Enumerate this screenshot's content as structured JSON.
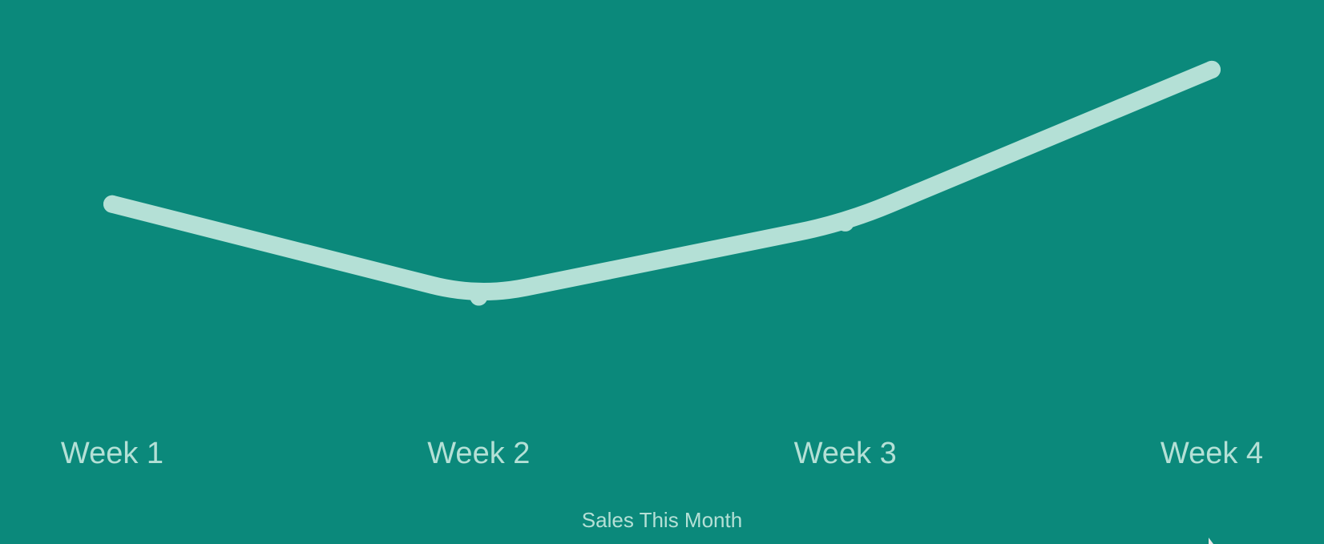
{
  "chart_data": {
    "type": "line",
    "categories": [
      "Week 1",
      "Week 2",
      "Week 3",
      "Week 4"
    ],
    "series": [
      {
        "values": [
          5.6,
          3.6,
          5.2,
          8.5
        ]
      }
    ],
    "xlabel": "Sales This Month",
    "ylabel": "",
    "ylim": [
      0,
      10
    ],
    "grid": false,
    "legend": "none",
    "colors": {
      "background": "#0b897b",
      "line": "#b4e0d6",
      "text": "#b4e0d6"
    }
  }
}
